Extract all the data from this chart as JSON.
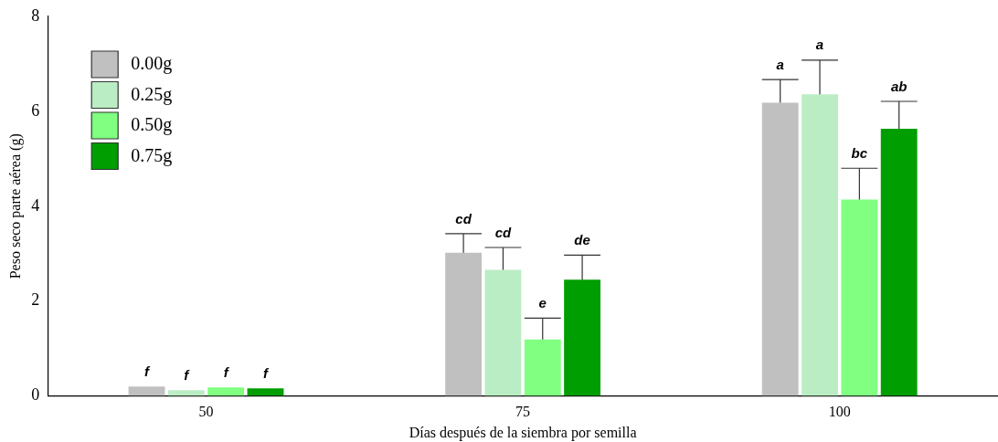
{
  "chart_data": {
    "type": "bar",
    "xlabel": "Días después de la siembra por semilla",
    "ylabel": "Peso seco parte aérea (g)",
    "categories": [
      "50",
      "75",
      "100"
    ],
    "series": [
      {
        "name": "0.00g",
        "color": "#c0c0c0",
        "values": [
          0.2,
          3.02,
          6.18
        ],
        "errors": [
          null,
          [
            3.02,
            3.42
          ],
          [
            6.18,
            6.67
          ]
        ]
      },
      {
        "name": "0.25g",
        "color": "#bbedc4",
        "values": [
          0.12,
          2.66,
          6.36
        ],
        "errors": [
          null,
          [
            2.66,
            3.13
          ],
          [
            6.36,
            7.08
          ]
        ]
      },
      {
        "name": "0.50g",
        "color": "#80ff80",
        "values": [
          0.18,
          1.19,
          4.14
        ],
        "errors": [
          null,
          [
            1.19,
            1.64
          ],
          [
            4.14,
            4.8
          ]
        ]
      },
      {
        "name": "0.75g",
        "color": "#009e00",
        "values": [
          0.16,
          2.45,
          5.63
        ],
        "errors": [
          null,
          [
            2.45,
            2.97
          ],
          [
            5.63,
            6.21
          ]
        ]
      }
    ],
    "ylim": [
      0,
      8
    ],
    "yticks": [
      0,
      2,
      4,
      6,
      8
    ],
    "grid": false,
    "legend": "top left",
    "annotations": [
      "f",
      "f",
      "f",
      "f",
      "cd",
      "cd",
      "e",
      "de",
      "a",
      "a",
      "bc",
      "ab"
    ]
  }
}
